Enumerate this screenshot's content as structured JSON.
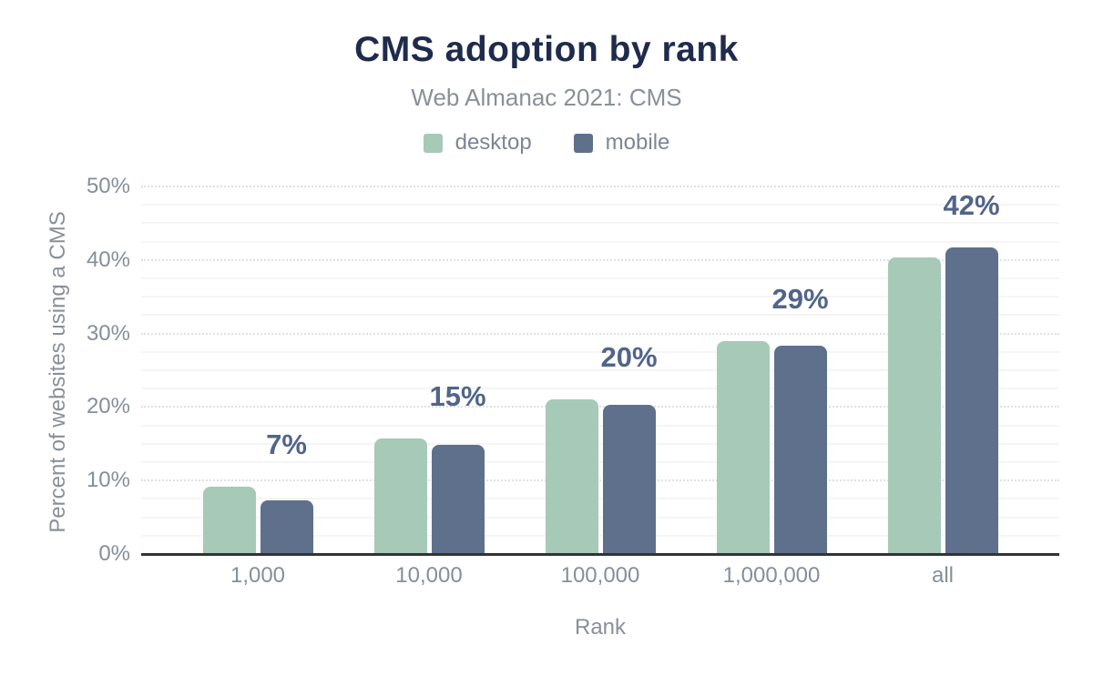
{
  "title": "CMS adoption by rank",
  "subtitle": "Web Almanac 2021: CMS",
  "legend": [
    {
      "label": "desktop",
      "color": "#a6c9b8"
    },
    {
      "label": "mobile",
      "color": "#5f708c"
    }
  ],
  "chart_data": {
    "type": "bar",
    "title": "CMS adoption by rank",
    "subtitle": "Web Almanac 2021: CMS",
    "categories": [
      "1,000",
      "10,000",
      "100,000",
      "1,000,000",
      "all"
    ],
    "series": [
      {
        "name": "desktop",
        "color": "#a6c9b8",
        "values": [
          9.1,
          15.7,
          21.1,
          29.0,
          40.4
        ]
      },
      {
        "name": "mobile",
        "color": "#5f708c",
        "values": [
          7.3,
          14.9,
          20.3,
          28.4,
          41.7
        ]
      }
    ],
    "data_labels": [
      "7%",
      "15%",
      "20%",
      "29%",
      "42%"
    ],
    "xlabel": "Rank",
    "ylabel": "Percent of websites using a CMS",
    "ylim": [
      0,
      50
    ],
    "ytick_step": 10,
    "ytick_suffix": "%",
    "minor_grid_step": 2.5,
    "grid": "horizontal",
    "legend_position": "top"
  },
  "colors": {
    "title": "#1f2b4d",
    "subtitle": "#8a8f99",
    "axis_text": "#868e9c",
    "data_label": "#51658a",
    "axis_line": "#333333",
    "major_grid": "#e0e0e0",
    "minor_grid": "#f5f5f5",
    "background": "#ffffff"
  }
}
